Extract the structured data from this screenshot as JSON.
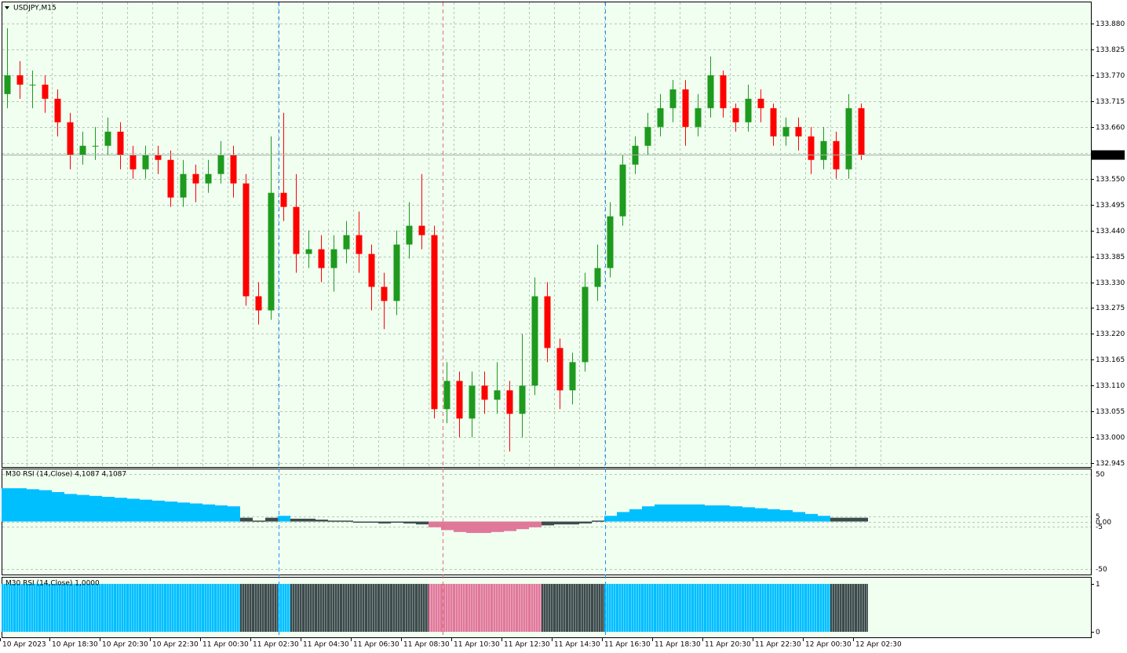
{
  "chart_data": [
    {
      "type": "candlestick",
      "title": "USDJPY,M15",
      "categories": [
        "10 Apr 2023",
        "10 Apr 18:30",
        "10 Apr 20:30",
        "10 Apr 22:30",
        "11 Apr 00:30",
        "11 Apr 02:30",
        "11 Apr 04:30",
        "11 Apr 06:30",
        "11 Apr 08:30",
        "11 Apr 10:30",
        "11 Apr 12:30",
        "11 Apr 14:30",
        "11 Apr 16:30",
        "11 Apr 18:30",
        "11 Apr 20:30",
        "11 Apr 22:30",
        "12 Apr 00:30",
        "12 Apr 02:30"
      ],
      "candles": [
        [
          133.73,
          133.87,
          133.7,
          133.77
        ],
        [
          133.77,
          133.8,
          133.72,
          133.75
        ],
        [
          133.75,
          133.78,
          133.7,
          133.75
        ],
        [
          133.75,
          133.77,
          133.69,
          133.72
        ],
        [
          133.72,
          133.74,
          133.64,
          133.67
        ],
        [
          133.67,
          133.69,
          133.57,
          133.6
        ],
        [
          133.6,
          133.65,
          133.58,
          133.62
        ],
        [
          133.62,
          133.66,
          133.59,
          133.62
        ],
        [
          133.62,
          133.68,
          133.6,
          133.65
        ],
        [
          133.65,
          133.67,
          133.57,
          133.6
        ],
        [
          133.6,
          133.62,
          133.55,
          133.57
        ],
        [
          133.57,
          133.62,
          133.55,
          133.6
        ],
        [
          133.6,
          133.62,
          133.56,
          133.59
        ],
        [
          133.59,
          133.61,
          133.49,
          133.51
        ],
        [
          133.51,
          133.59,
          133.49,
          133.56
        ],
        [
          133.56,
          133.58,
          133.5,
          133.54
        ],
        [
          133.54,
          133.59,
          133.52,
          133.56
        ],
        [
          133.56,
          133.63,
          133.54,
          133.6
        ],
        [
          133.6,
          133.62,
          133.51,
          133.54
        ],
        [
          133.54,
          133.56,
          133.28,
          133.3
        ],
        [
          133.3,
          133.33,
          133.24,
          133.27
        ],
        [
          133.27,
          133.64,
          133.25,
          133.52
        ],
        [
          133.52,
          133.69,
          133.46,
          133.49
        ],
        [
          133.49,
          133.56,
          133.35,
          133.39
        ],
        [
          133.39,
          133.44,
          133.36,
          133.4
        ],
        [
          133.4,
          133.43,
          133.33,
          133.36
        ],
        [
          133.36,
          133.43,
          133.31,
          133.4
        ],
        [
          133.4,
          133.46,
          133.37,
          133.43
        ],
        [
          133.43,
          133.48,
          133.35,
          133.39
        ],
        [
          133.39,
          133.41,
          133.27,
          133.32
        ],
        [
          133.32,
          133.35,
          133.23,
          133.29
        ],
        [
          133.29,
          133.44,
          133.26,
          133.41
        ],
        [
          133.41,
          133.5,
          133.38,
          133.45
        ],
        [
          133.45,
          133.56,
          133.4,
          133.43
        ],
        [
          133.43,
          133.45,
          133.04,
          133.06
        ],
        [
          133.06,
          133.16,
          133.03,
          133.12
        ],
        [
          133.12,
          133.14,
          133.0,
          133.04
        ],
        [
          133.04,
          133.14,
          133.0,
          133.11
        ],
        [
          133.11,
          133.14,
          133.05,
          133.08
        ],
        [
          133.08,
          133.16,
          133.05,
          133.1
        ],
        [
          133.1,
          133.12,
          132.97,
          133.05
        ],
        [
          133.05,
          133.22,
          133.0,
          133.11
        ],
        [
          133.11,
          133.34,
          133.09,
          133.3
        ],
        [
          133.3,
          133.33,
          133.16,
          133.19
        ],
        [
          133.19,
          133.21,
          133.06,
          133.1
        ],
        [
          133.1,
          133.18,
          133.07,
          133.16
        ],
        [
          133.16,
          133.35,
          133.14,
          133.32
        ],
        [
          133.32,
          133.41,
          133.29,
          133.36
        ],
        [
          133.36,
          133.5,
          133.34,
          133.47
        ],
        [
          133.47,
          133.6,
          133.45,
          133.58
        ],
        [
          133.58,
          133.64,
          133.56,
          133.62
        ],
        [
          133.62,
          133.69,
          133.6,
          133.66
        ],
        [
          133.66,
          133.73,
          133.64,
          133.7
        ],
        [
          133.7,
          133.76,
          133.67,
          133.74
        ],
        [
          133.74,
          133.76,
          133.62,
          133.66
        ],
        [
          133.66,
          133.73,
          133.64,
          133.7
        ],
        [
          133.7,
          133.81,
          133.68,
          133.77
        ],
        [
          133.77,
          133.78,
          133.68,
          133.7
        ],
        [
          133.7,
          133.71,
          133.65,
          133.67
        ],
        [
          133.67,
          133.75,
          133.65,
          133.72
        ],
        [
          133.72,
          133.74,
          133.67,
          133.7
        ],
        [
          133.7,
          133.71,
          133.62,
          133.64
        ],
        [
          133.64,
          133.68,
          133.62,
          133.66
        ],
        [
          133.66,
          133.68,
          133.61,
          133.64
        ],
        [
          133.64,
          133.66,
          133.56,
          133.59
        ],
        [
          133.59,
          133.66,
          133.57,
          133.63
        ],
        [
          133.63,
          133.65,
          133.55,
          133.57
        ],
        [
          133.57,
          133.73,
          133.55,
          133.7
        ],
        [
          133.7,
          133.71,
          133.59,
          133.601
        ]
      ],
      "last_price": 133.601,
      "ylim": [
        132.937,
        133.925
      ],
      "yticks": [
        {
          "value": 133.88,
          "label": "133.880"
        },
        133.825,
        {
          "value": 133.77,
          "label": "133.770"
        },
        133.715,
        {
          "value": 133.66,
          "label": "133.660"
        },
        133.605,
        {
          "value": 133.55,
          "label": "133.550"
        },
        133.495,
        {
          "value": 133.44,
          "label": "133.440"
        },
        133.385,
        {
          "value": 133.33,
          "label": "133.330"
        },
        133.275,
        {
          "value": 133.22,
          "label": "133.220"
        },
        133.165,
        {
          "value": 133.11,
          "label": "133.110"
        },
        133.055,
        {
          "value": 133.0,
          "label": "133.000"
        },
        132.945
      ],
      "up_color": "#1e9a1e",
      "down_color": "#ff0000",
      "grid": true
    },
    {
      "type": "histogram",
      "title": "M30 RSI (14,Close) 4,1087 4,1087",
      "values": [
        35,
        35,
        34,
        33,
        31,
        29,
        28,
        27,
        26,
        25,
        24,
        23,
        22,
        21,
        20,
        19,
        18,
        17,
        16,
        4,
        1,
        4,
        6,
        3,
        3,
        2,
        1,
        1,
        0,
        -1,
        -2,
        -1,
        -2,
        -3,
        -6,
        -9,
        -11,
        -12,
        -12,
        -11,
        -10,
        -8,
        -6,
        -4,
        -3,
        -3,
        -2,
        1,
        6,
        10,
        13,
        16,
        18,
        18,
        18,
        18,
        17,
        17,
        16,
        15,
        14,
        13,
        12,
        10,
        8,
        6,
        4,
        4,
        4
      ],
      "ylim": [
        -55.7,
        54.9
      ],
      "yticks": [
        50,
        5,
        {
          "value": 0,
          "label": "0,00"
        },
        -5,
        -50
      ],
      "levels": [
        5,
        -5
      ],
      "colors": {
        "up": "#00bfff",
        "neutral": "#3c4b4b",
        "down": "#e0789a"
      }
    },
    {
      "type": "bar",
      "title": "M30 RSI (14,Close) 1,0000",
      "values": [
        1,
        1,
        1,
        1,
        1,
        1,
        1,
        1,
        1,
        1,
        1,
        1,
        1,
        1,
        1,
        1,
        1,
        1,
        1,
        1,
        1,
        1,
        1,
        1,
        1,
        1,
        1,
        1,
        1,
        1,
        1,
        1,
        1,
        1,
        1,
        1,
        1,
        1,
        1,
        1,
        1,
        1,
        1,
        1,
        1,
        1,
        1,
        1,
        1,
        1,
        1,
        1,
        1,
        1,
        1,
        1,
        1,
        1,
        1,
        1,
        1,
        1,
        1,
        1,
        1,
        1,
        1,
        1,
        1
      ],
      "ylim": [
        -0.115,
        1.13
      ],
      "yticks": [
        1,
        0
      ]
    }
  ]
}
